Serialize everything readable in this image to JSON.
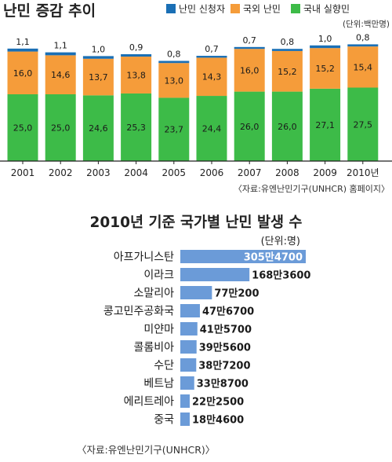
{
  "chart_data": [
    {
      "type": "bar",
      "stacked": true,
      "title": "난민 증감 추이",
      "unit_note": "(단위:백만명)",
      "source": "〈자료:유엔난민기구(UNHCR) 홈페이지〉",
      "legend_position": "top-right",
      "categories": [
        "2001",
        "2002",
        "2003",
        "2004",
        "2005",
        "2006",
        "2007",
        "2008",
        "2009",
        "2010년"
      ],
      "series": [
        {
          "name": "국내 실향민",
          "color": "#3dbb48",
          "values": [
            25.0,
            25.0,
            24.6,
            25.3,
            23.7,
            24.4,
            26.0,
            26.0,
            27.1,
            27.5
          ],
          "labels": [
            "25,0",
            "25,0",
            "24,6",
            "25,3",
            "23,7",
            "24,4",
            "26,0",
            "26,0",
            "27,1",
            "27,5"
          ]
        },
        {
          "name": "국외 난민",
          "color": "#f59c3a",
          "values": [
            16.0,
            14.6,
            13.7,
            13.8,
            13.0,
            14.3,
            16.0,
            15.2,
            15.2,
            15.4
          ],
          "labels": [
            "16,0",
            "14,6",
            "13,7",
            "13,8",
            "13,0",
            "14,3",
            "16,0",
            "15,2",
            "15,2",
            "15,4"
          ]
        },
        {
          "name": "난민 신청자",
          "color": "#1a6fb5",
          "values": [
            1.1,
            1.1,
            1.0,
            0.9,
            0.8,
            0.7,
            0.7,
            0.8,
            1.0,
            0.8
          ],
          "labels": [
            "1,1",
            "1,1",
            "1,0",
            "0,9",
            "0,8",
            "0,7",
            "0,7",
            "0,8",
            "1,0",
            "0,8"
          ]
        }
      ],
      "legend_order": [
        "난민 신청자",
        "국외 난민",
        "국내 실향민"
      ],
      "grid": false
    },
    {
      "type": "bar",
      "orientation": "horizontal",
      "title": "2010년 기준 국가별 난민 발생 수",
      "unit_note": "(단위:명)",
      "source": "〈자료:유엔난민기구(UNHCR)〉",
      "bar_color": "#6b9bd8",
      "categories": [
        "아프가니스탄",
        "이라크",
        "소말리아",
        "콩고민주공화국",
        "미얀마",
        "콜롬비아",
        "수단",
        "베트남",
        "에리트레아",
        "중국"
      ],
      "values": [
        3054700,
        1683600,
        770200,
        476700,
        415700,
        395600,
        387200,
        338700,
        222500,
        184600
      ],
      "labels": [
        "305만4700",
        "168만3600",
        "77만200",
        "47만6700",
        "41만5700",
        "39만5600",
        "38만7200",
        "33만8700",
        "22만2500",
        "18만4600"
      ],
      "grid": false
    }
  ]
}
